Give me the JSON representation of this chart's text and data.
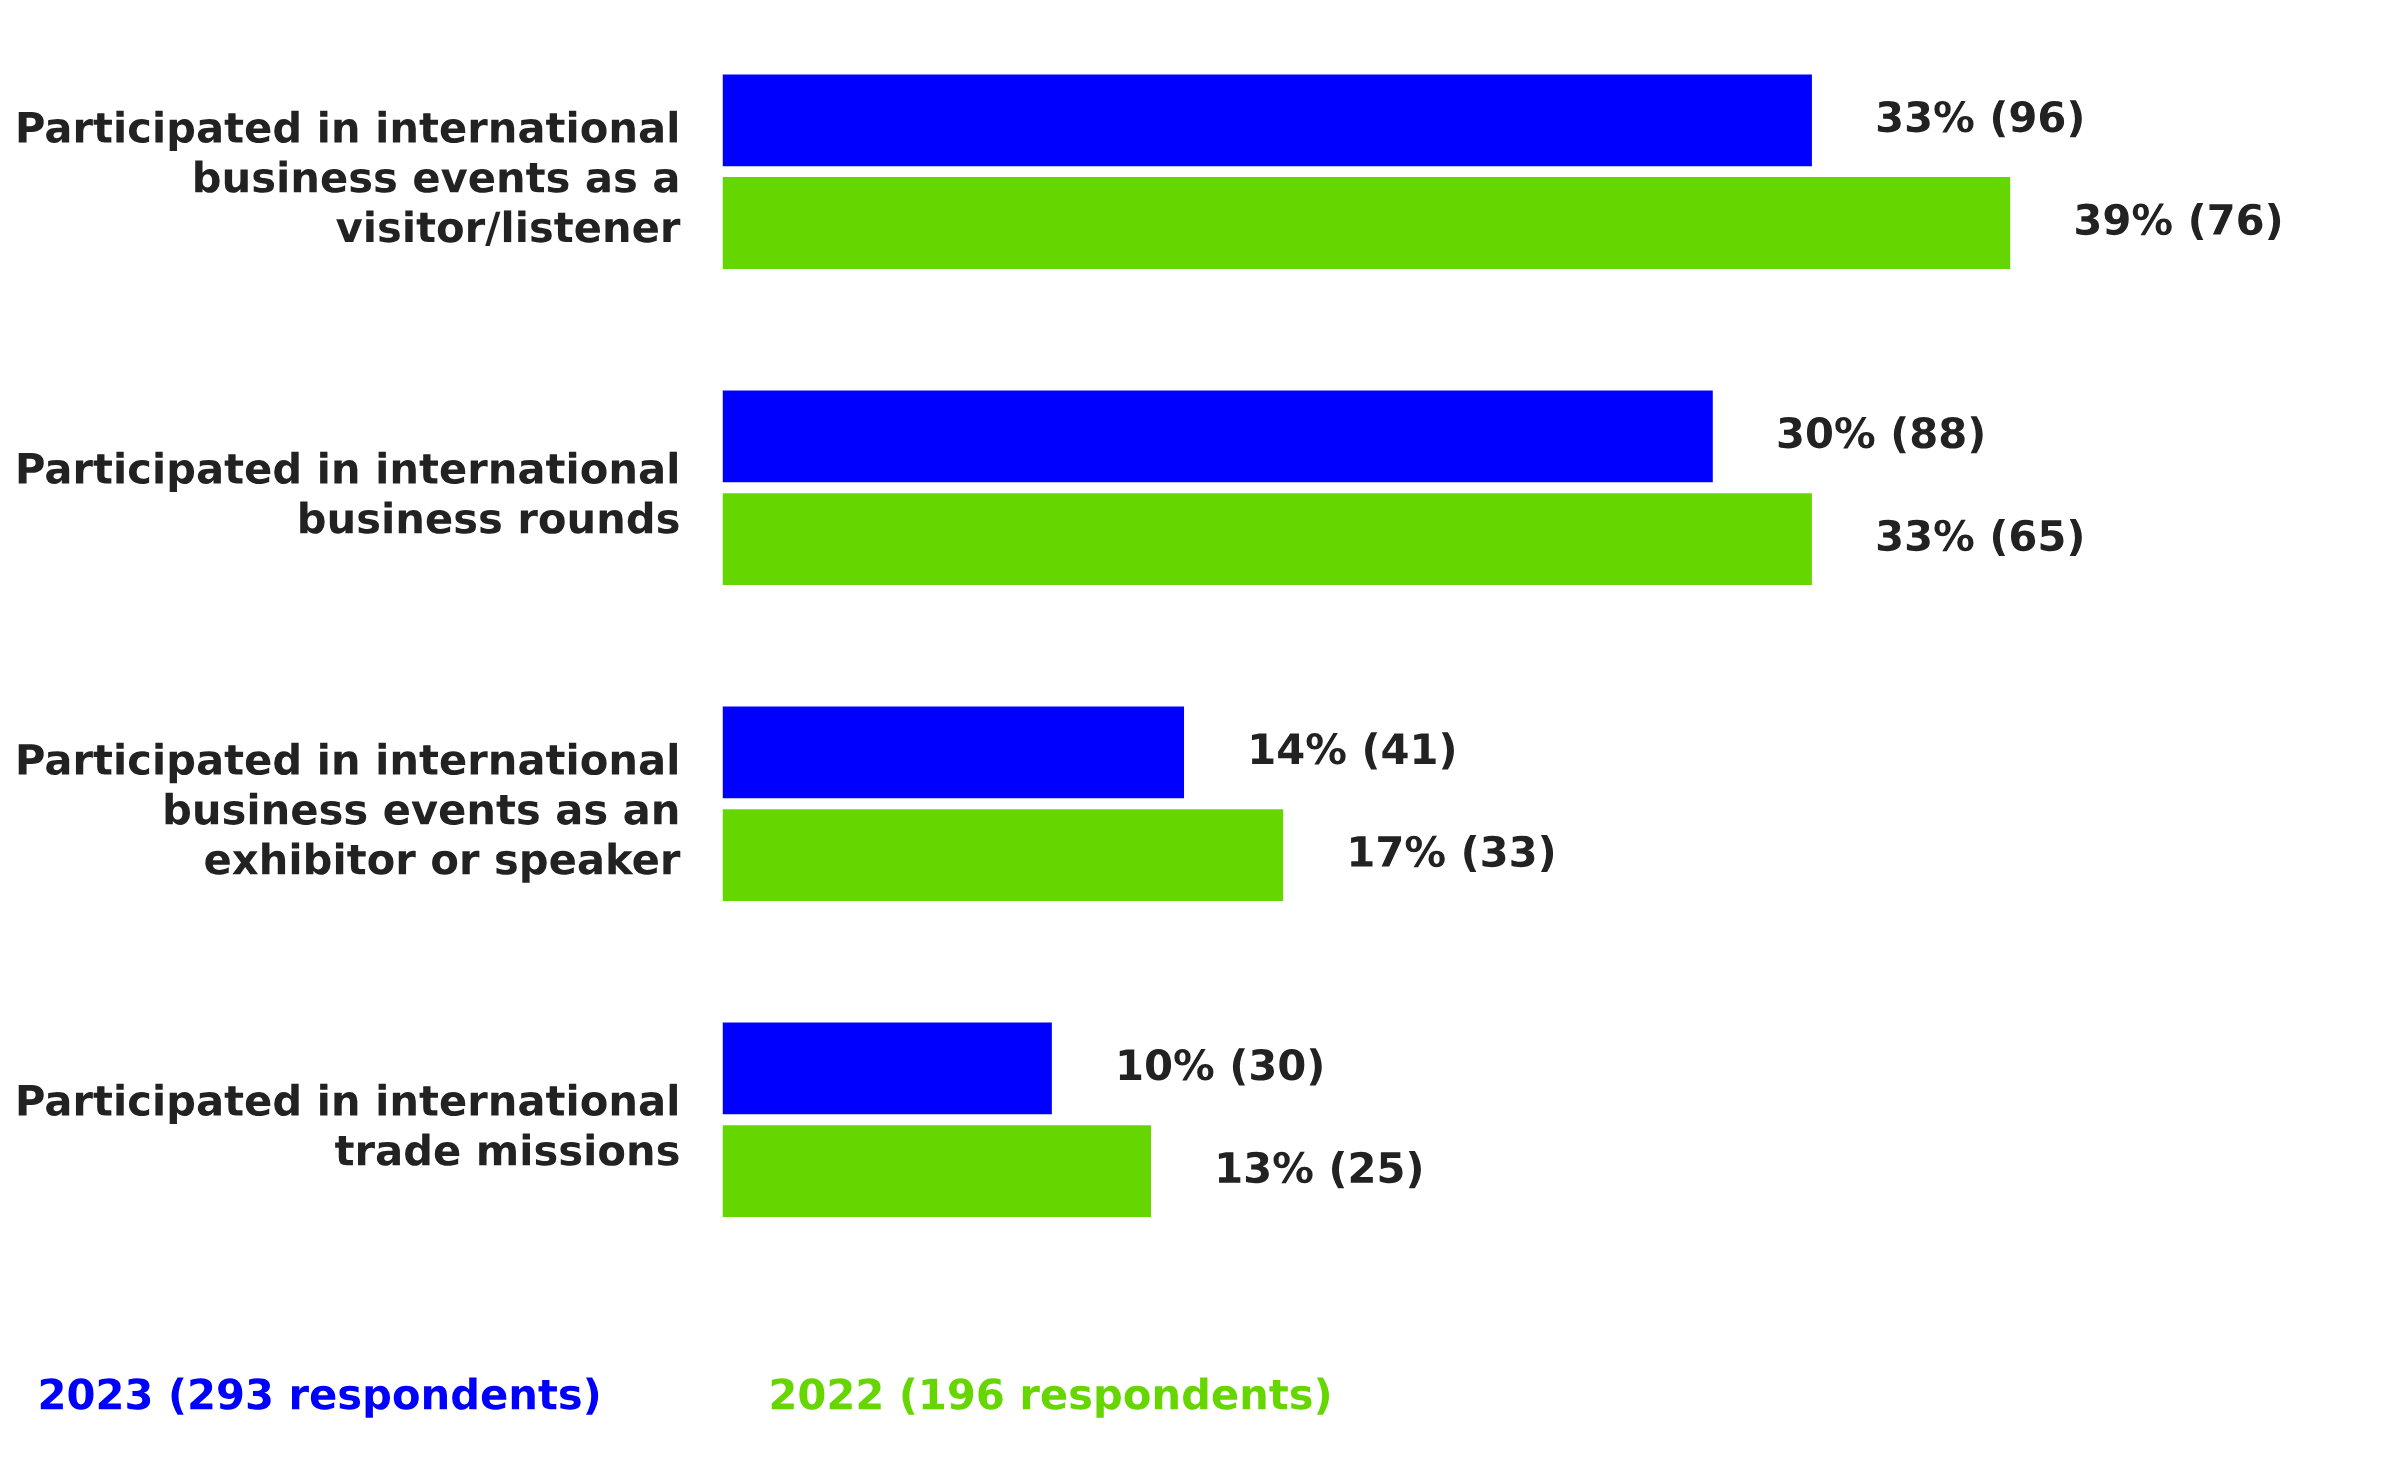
{
  "chart_data": {
    "type": "bar",
    "orientation": "horizontal",
    "categories": [
      "Participated in international\nbusiness events as a\nvisitor/listener",
      "Participated in international\nbusiness rounds",
      "Participated in international\nbusiness events as an\nexhibitor or speaker",
      "Participated in international\ntrade missions"
    ],
    "series": [
      {
        "name": "2023 (293 respondents)",
        "color": "#0000ff",
        "values": [
          33,
          30,
          14,
          10
        ],
        "value_labels": [
          "33% (96)",
          "30% (88)",
          "14% (41)",
          "10% (30)"
        ]
      },
      {
        "name": "2022 (196 respondents)",
        "color": "#66d600",
        "values": [
          39,
          33,
          17,
          13
        ],
        "value_labels": [
          "39% (76)",
          "33% (65)",
          "17% (33)",
          "13% (25)"
        ]
      }
    ],
    "legend": "bottom left",
    "grid": false
  }
}
